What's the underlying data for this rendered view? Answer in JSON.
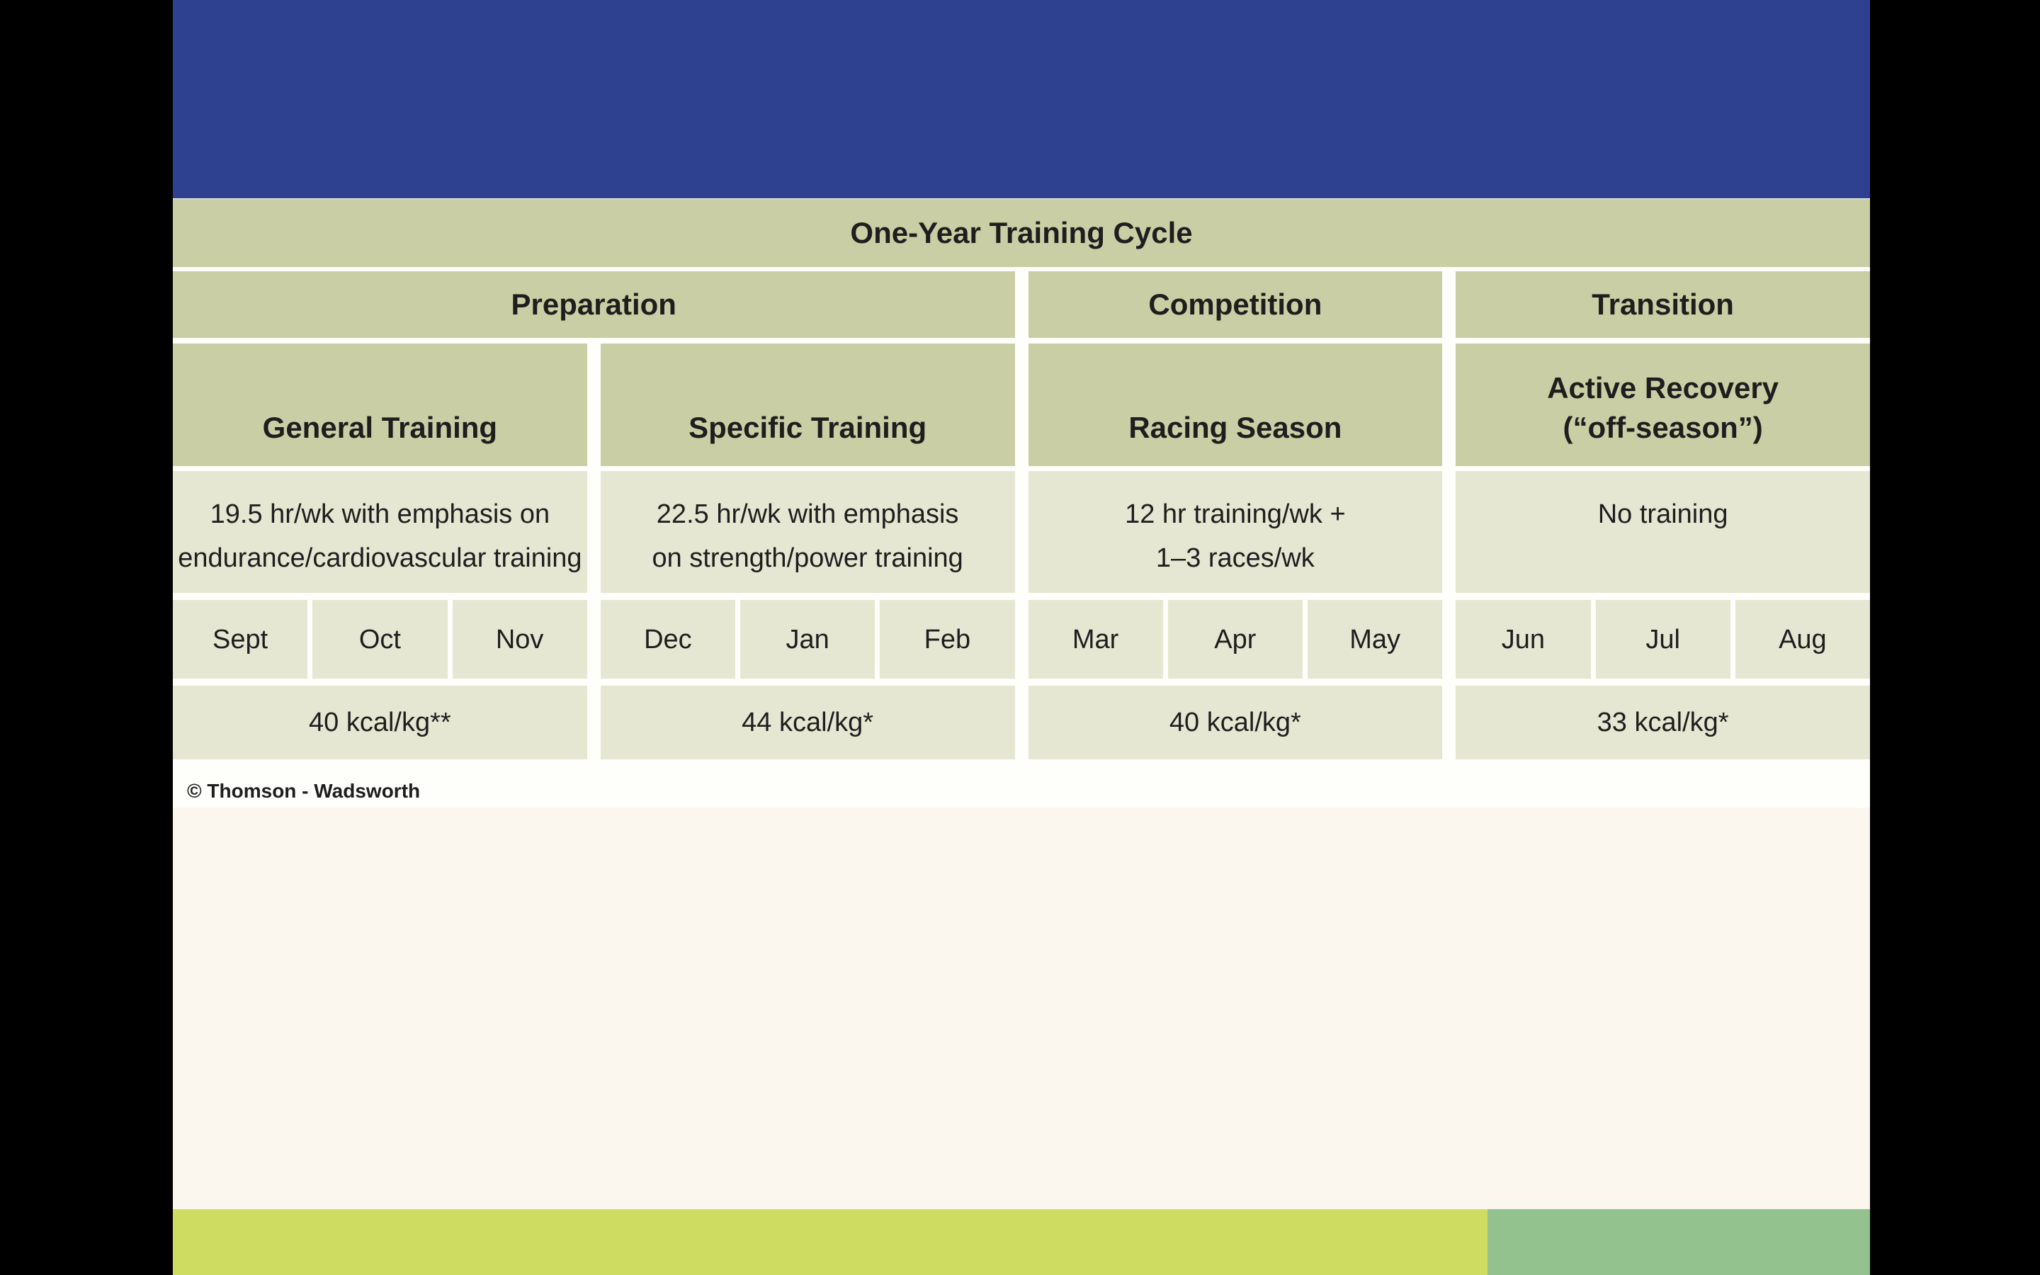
{
  "slide": {
    "copyright": "© Thomson - Wadsworth"
  },
  "table": {
    "title": "One-Year Training Cycle",
    "phases": [
      {
        "label": "Preparation"
      },
      {
        "label": "Competition"
      },
      {
        "label": "Transition"
      }
    ],
    "columns": [
      {
        "subphase_line1": "General Training",
        "desc_line1": "19.5 hr/wk with emphasis on",
        "desc_line2": "endurance/cardiovascular training",
        "months": [
          "Sept",
          "Oct",
          "Nov"
        ],
        "kcal": "40 kcal/kg**"
      },
      {
        "subphase_line1": "Specific Training",
        "desc_line1": "22.5 hr/wk with emphasis",
        "desc_line2": "on strength/power training",
        "months": [
          "Dec",
          "Jan",
          "Feb"
        ],
        "kcal": "44 kcal/kg*"
      },
      {
        "subphase_line1": "Racing Season",
        "desc_line1": "12 hr training/wk +",
        "desc_line2": "1–3 races/wk",
        "months": [
          "Mar",
          "Apr",
          "May"
        ],
        "kcal": "40 kcal/kg*"
      },
      {
        "subphase_line1": "Active Recovery",
        "subphase_line2": "(“off-season”)",
        "desc_line1": "No training",
        "months": [
          "Jun",
          "Jul",
          "Aug"
        ],
        "kcal": "33 kcal/kg*"
      }
    ]
  },
  "colors": {
    "band_blue": "#2d4190",
    "header_cell_green": "#c9cea4",
    "data_cell_green": "#e6e7d2",
    "bar_yellow_green": "#cedd62",
    "bar_sage_green": "#94c28f",
    "page_cream": "#fbf7ee",
    "letterbox_black": "#000000"
  }
}
